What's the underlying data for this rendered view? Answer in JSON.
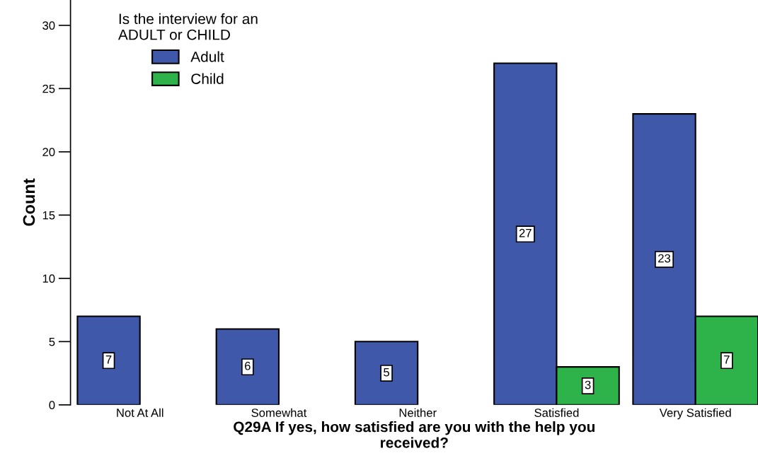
{
  "chart_data": {
    "type": "bar",
    "xlabel": "Q29A If yes, how satisfied are you with the help you received?",
    "ylabel": "Count",
    "legend_title": "Is the interview for an\nADULT or CHILD",
    "categories": [
      "Not At All",
      "Somewhat",
      "Neither",
      "Satisfied",
      "Very Satisfied"
    ],
    "series": [
      {
        "name": "Adult",
        "color": "#3f58a9",
        "values": [
          7,
          6,
          5,
          27,
          23
        ]
      },
      {
        "name": "Child",
        "color": "#2db34a",
        "values": [
          null,
          null,
          null,
          3,
          7
        ]
      }
    ],
    "ylim": [
      0,
      32
    ],
    "yticks": [
      0,
      5,
      10,
      15,
      20,
      25,
      30
    ],
    "data_labels": true,
    "grid": false,
    "legend": "top left"
  }
}
